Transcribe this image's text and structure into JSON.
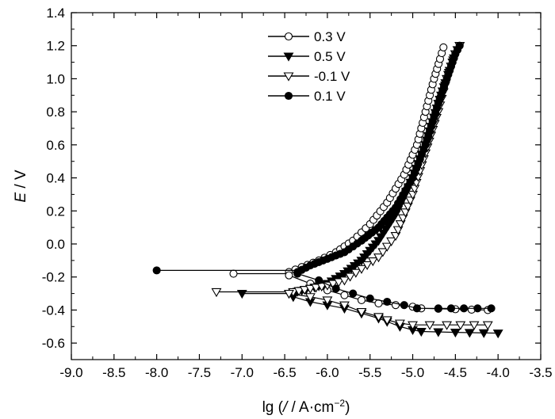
{
  "chart_data": {
    "type": "line",
    "title": "",
    "xlabel": "lg (/ / A·cm⁻²)",
    "xlabel_parts": {
      "prefix": "lg (",
      "italic": "/",
      "mid": " / A·cm",
      "sup": "−2",
      "suffix": ")"
    },
    "ylabel": "E / V",
    "ylabel_parts": {
      "italic": "E",
      "rest": " / V"
    },
    "xlim": [
      -9.0,
      -3.5
    ],
    "ylim": [
      -0.7,
      1.4
    ],
    "xticks": [
      "-9.0",
      "-8.5",
      "-8.0",
      "-7.5",
      "-7.0",
      "-6.5",
      "-6.0",
      "-5.5",
      "-5.0",
      "-4.5",
      "-4.0",
      "-3.5"
    ],
    "yticks": [
      "-0.6",
      "-0.4",
      "-0.2",
      "0.0",
      "0.2",
      "0.4",
      "0.6",
      "0.8",
      "1.0",
      "1.2",
      "1.4"
    ],
    "legend_position": "top-center",
    "series": [
      {
        "name": "0.3 V",
        "marker": "circle-open",
        "corrosion_potential": -0.18,
        "anodic": [
          [
            -6.45,
            -0.17
          ],
          [
            -6.3,
            -0.14
          ],
          [
            -6.1,
            -0.1
          ],
          [
            -5.9,
            -0.05
          ],
          [
            -5.7,
            0.02
          ],
          [
            -5.5,
            0.12
          ],
          [
            -5.3,
            0.25
          ],
          [
            -5.1,
            0.42
          ],
          [
            -4.95,
            0.6
          ],
          [
            -4.85,
            0.8
          ],
          [
            -4.75,
            1.0
          ],
          [
            -4.68,
            1.12
          ],
          [
            -4.64,
            1.19
          ]
        ],
        "cathodic": [
          [
            -6.45,
            -0.19
          ],
          [
            -6.2,
            -0.24
          ],
          [
            -6.0,
            -0.28
          ],
          [
            -5.8,
            -0.31
          ],
          [
            -5.6,
            -0.34
          ],
          [
            -5.4,
            -0.36
          ],
          [
            -5.2,
            -0.37
          ],
          [
            -5.0,
            -0.38
          ],
          [
            -4.9,
            -0.39
          ],
          [
            -4.5,
            -0.395
          ],
          [
            -4.12,
            -0.4
          ]
        ],
        "flat": [
          [
            -7.1,
            -0.18
          ],
          [
            -6.45,
            -0.18
          ]
        ]
      },
      {
        "name": "0.5 V",
        "marker": "triangle-down-filled",
        "corrosion_potential": -0.3,
        "anodic": [
          [
            -6.45,
            -0.3
          ],
          [
            -6.2,
            -0.27
          ],
          [
            -6.0,
            -0.24
          ],
          [
            -5.8,
            -0.18
          ],
          [
            -5.6,
            -0.1
          ],
          [
            -5.4,
            0.02
          ],
          [
            -5.2,
            0.18
          ],
          [
            -5.0,
            0.4
          ],
          [
            -4.85,
            0.6
          ],
          [
            -4.7,
            0.85
          ],
          [
            -4.6,
            1.0
          ],
          [
            -4.5,
            1.15
          ],
          [
            -4.45,
            1.2
          ]
        ],
        "cathodic": [
          [
            -6.4,
            -0.32
          ],
          [
            -6.2,
            -0.35
          ],
          [
            -6.0,
            -0.37
          ],
          [
            -5.8,
            -0.39
          ],
          [
            -5.6,
            -0.42
          ],
          [
            -5.4,
            -0.45
          ],
          [
            -5.3,
            -0.47
          ],
          [
            -5.15,
            -0.5
          ],
          [
            -5.0,
            -0.52
          ],
          [
            -4.9,
            -0.53
          ],
          [
            -4.5,
            -0.535
          ],
          [
            -4.0,
            -0.54
          ]
        ],
        "flat": [
          [
            -7.0,
            -0.3
          ],
          [
            -6.45,
            -0.3
          ]
        ]
      },
      {
        "name": "-0.1 V",
        "marker": "triangle-down-open",
        "corrosion_potential": -0.29,
        "anodic": [
          [
            -6.4,
            -0.29
          ],
          [
            -6.2,
            -0.27
          ],
          [
            -6.0,
            -0.25
          ],
          [
            -5.8,
            -0.22
          ],
          [
            -5.6,
            -0.15
          ],
          [
            -5.4,
            -0.08
          ],
          [
            -5.2,
            0.05
          ],
          [
            -5.0,
            0.3
          ],
          [
            -4.85,
            0.55
          ],
          [
            -4.7,
            0.8
          ],
          [
            -4.6,
            1.0
          ],
          [
            -4.5,
            1.15
          ],
          [
            -4.45,
            1.2
          ]
        ],
        "cathodic": [
          [
            -6.45,
            -0.3
          ],
          [
            -6.2,
            -0.32
          ],
          [
            -6.0,
            -0.34
          ],
          [
            -5.8,
            -0.37
          ],
          [
            -5.6,
            -0.41
          ],
          [
            -5.4,
            -0.44
          ],
          [
            -5.3,
            -0.46
          ],
          [
            -5.15,
            -0.48
          ],
          [
            -5.0,
            -0.49
          ],
          [
            -4.6,
            -0.49
          ],
          [
            -4.12,
            -0.49
          ]
        ],
        "flat": [
          [
            -7.3,
            -0.29
          ],
          [
            -6.4,
            -0.29
          ]
        ]
      },
      {
        "name": "0.1 V",
        "marker": "circle-filled",
        "corrosion_potential": -0.16,
        "anodic": [
          [
            -6.35,
            -0.17
          ],
          [
            -6.2,
            -0.13
          ],
          [
            -6.0,
            -0.09
          ],
          [
            -5.8,
            -0.05
          ],
          [
            -5.6,
            0.02
          ],
          [
            -5.4,
            0.1
          ],
          [
            -5.2,
            0.22
          ],
          [
            -5.0,
            0.4
          ],
          [
            -4.85,
            0.6
          ],
          [
            -4.7,
            0.85
          ],
          [
            -4.6,
            1.0
          ],
          [
            -4.5,
            1.15
          ],
          [
            -4.45,
            1.2
          ]
        ],
        "cathodic": [
          [
            -6.35,
            -0.18
          ],
          [
            -6.1,
            -0.22
          ],
          [
            -5.9,
            -0.27
          ],
          [
            -5.7,
            -0.3
          ],
          [
            -5.5,
            -0.33
          ],
          [
            -5.3,
            -0.35
          ],
          [
            -5.1,
            -0.37
          ],
          [
            -4.95,
            -0.39
          ],
          [
            -4.7,
            -0.39
          ],
          [
            -4.4,
            -0.39
          ],
          [
            -4.08,
            -0.39
          ]
        ],
        "flat": [
          [
            -8.0,
            -0.16
          ],
          [
            -6.35,
            -0.16
          ]
        ]
      }
    ]
  }
}
